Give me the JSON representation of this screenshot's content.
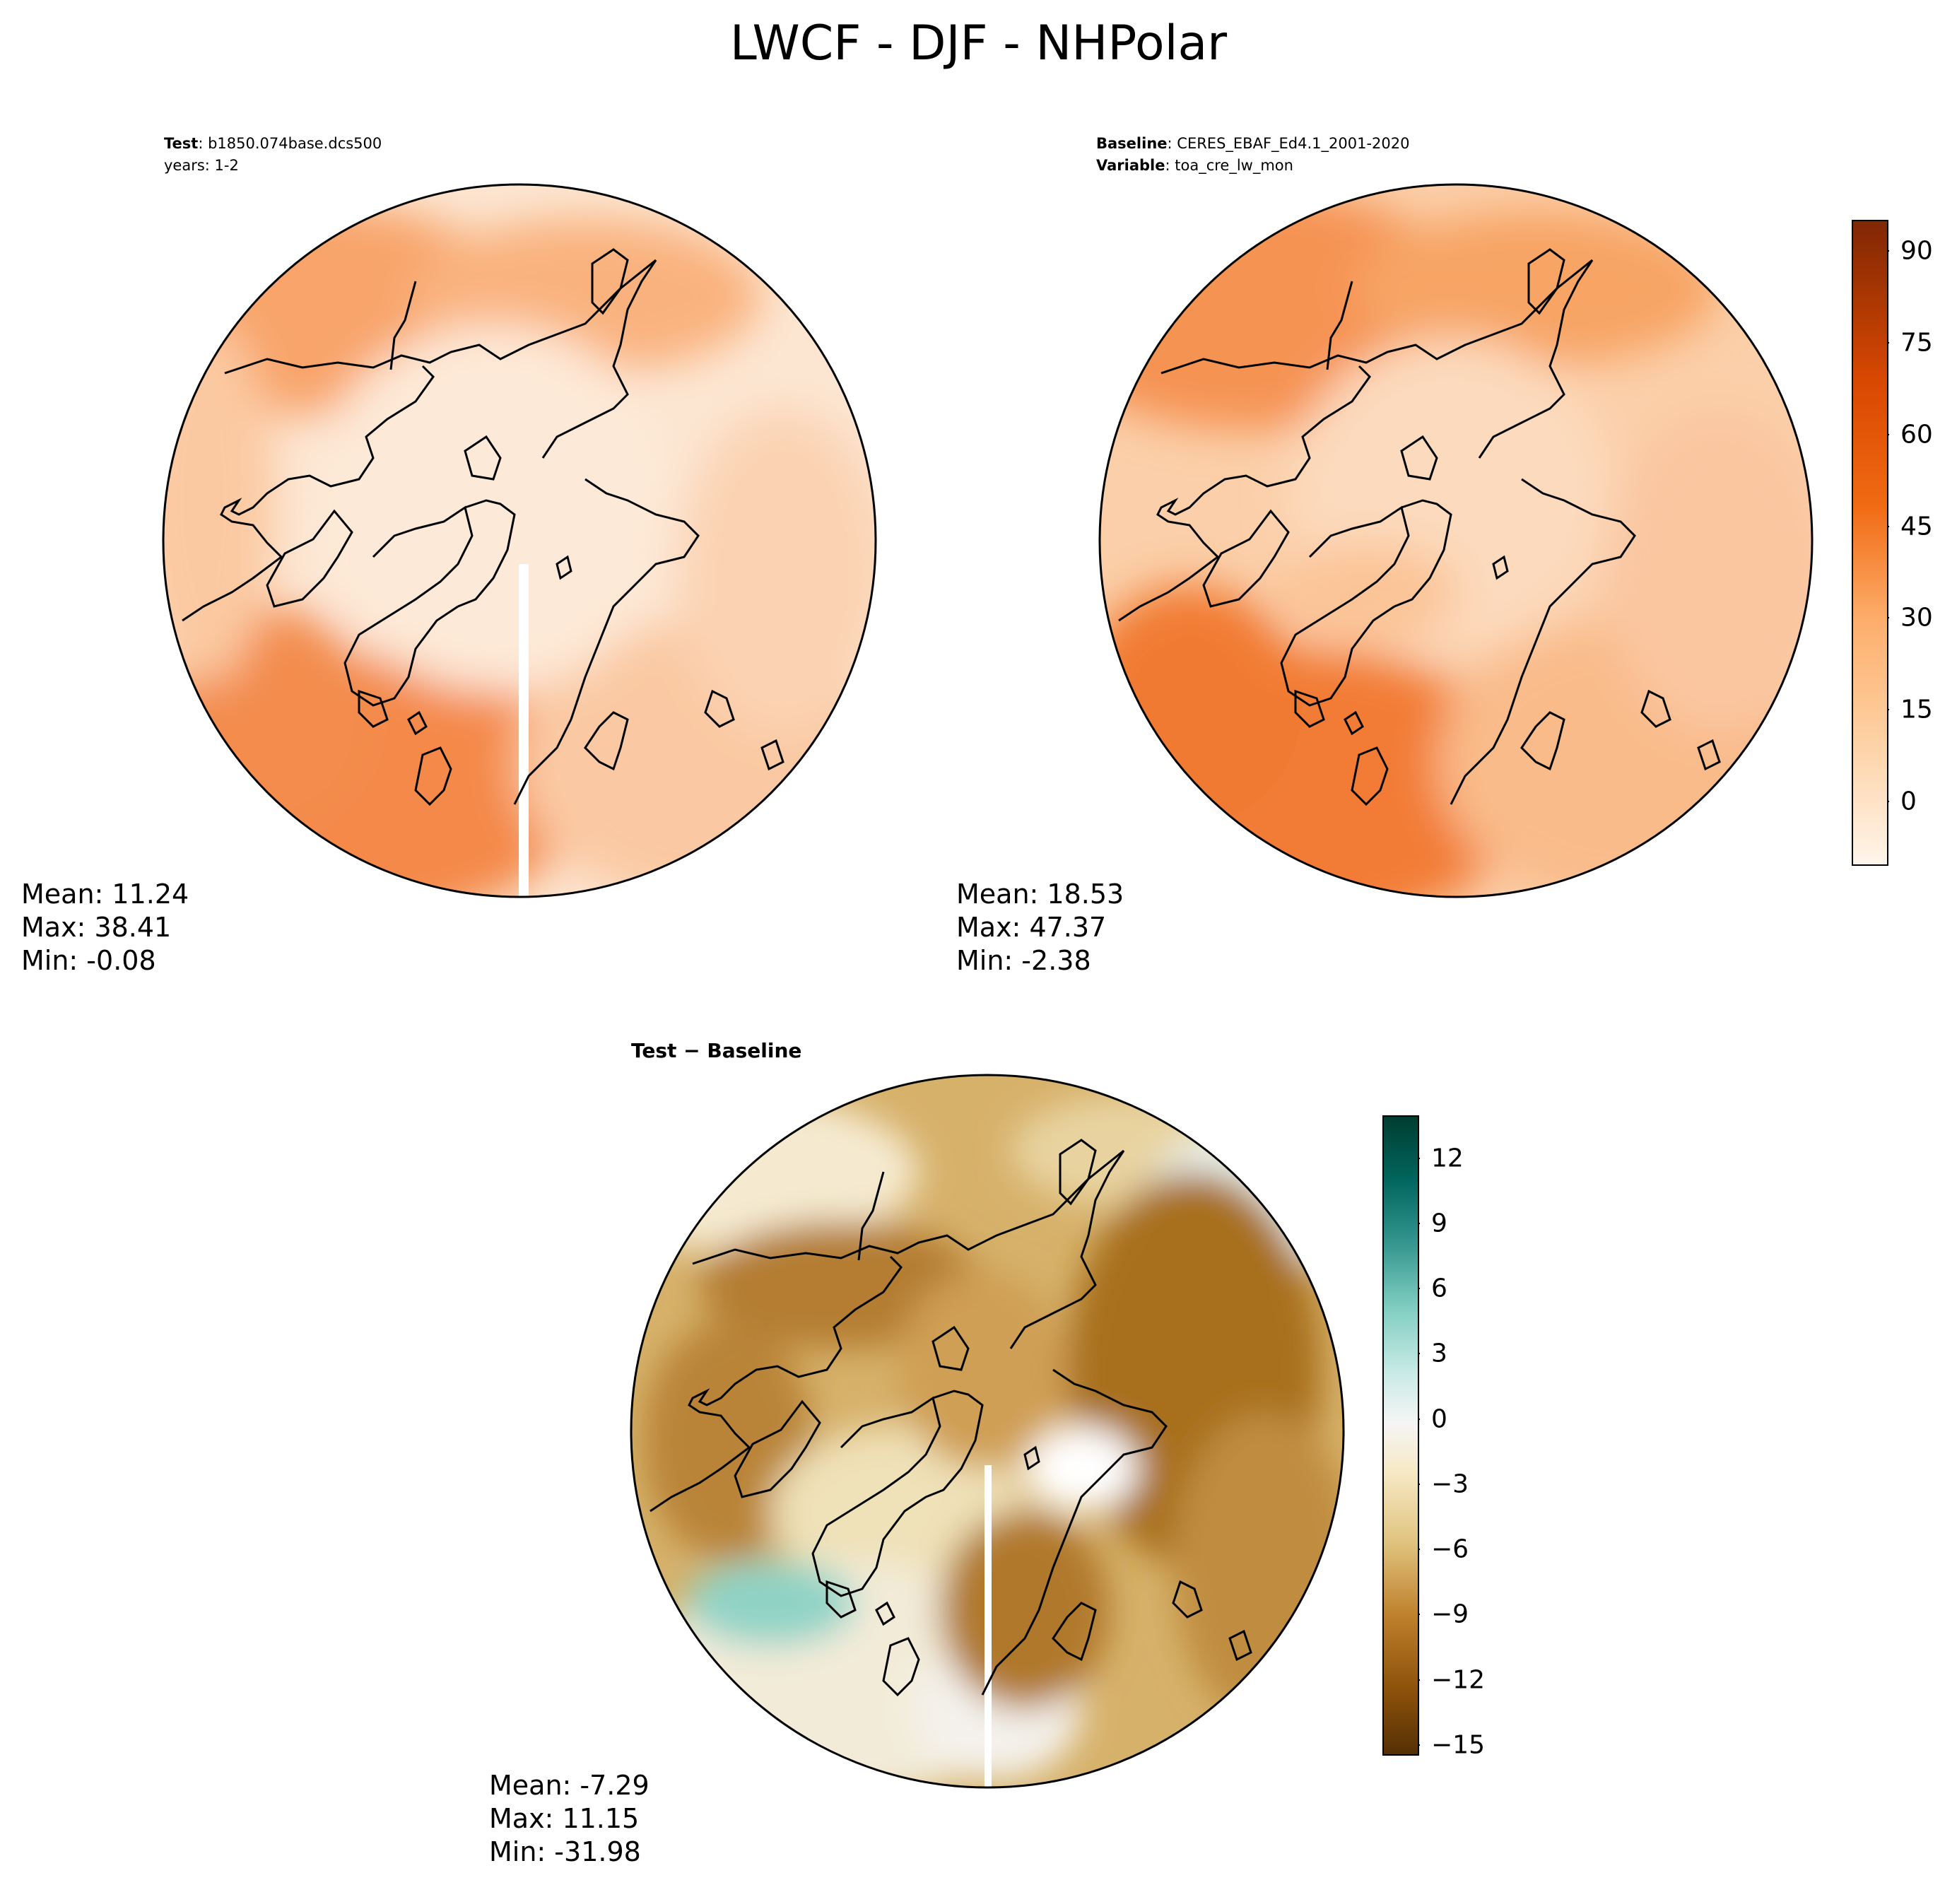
{
  "title": "LWCF - DJF - NHPolar",
  "test": {
    "label": "Test",
    "name": "b1850.074base.dcs500",
    "years": "years: 1-2",
    "stats": {
      "mean": "Mean: 11.24",
      "max": "Max: 38.41",
      "min": "Min: -0.08"
    }
  },
  "baseline": {
    "label": "Baseline",
    "name": "CERES_EBAF_Ed4.1_2001-2020",
    "variable_label": "Variable",
    "variable": "toa_cre_lw_mon",
    "stats": {
      "mean": "Mean: 18.53",
      "max": "Max: 47.37",
      "min": "Min: -2.38"
    }
  },
  "diff": {
    "title": "Test − Baseline",
    "stats": {
      "mean": "Mean: -7.29",
      "max": "Max: 11.15",
      "min": "Min: -31.98"
    }
  },
  "colorbar_main": {
    "ticks": [
      "0",
      "15",
      "30",
      "45",
      "60",
      "75",
      "90"
    ],
    "range": [
      -8,
      95
    ],
    "colormap": "Oranges",
    "colors": [
      "#fff5eb",
      "#fdd0a2",
      "#fdae6b",
      "#f16913",
      "#d94801",
      "#7f2704"
    ]
  },
  "colorbar_diff": {
    "ticks": [
      "12",
      "9",
      "6",
      "3",
      "0",
      "−3",
      "−6",
      "−9",
      "−12",
      "−15"
    ],
    "range": [
      -15,
      14
    ],
    "colormap": "BrBG",
    "colors": [
      "#543005",
      "#8c510a",
      "#bf812d",
      "#dfc27d",
      "#f6e8c3",
      "#f5f5f5",
      "#c7eae5",
      "#80cdc1",
      "#35978f",
      "#01665e",
      "#003c30"
    ]
  }
}
